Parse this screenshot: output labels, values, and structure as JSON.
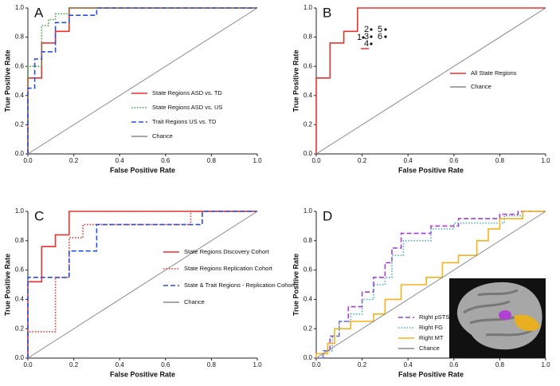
{
  "chart_data": [
    {
      "type": "line",
      "panel": "A",
      "xlabel": "False Positive Rate",
      "ylabel": "True Positive Rate",
      "xlim": [
        0,
        1
      ],
      "ylim": [
        0,
        1
      ],
      "xticks": [
        {
          "value": 0,
          "label": "0.0"
        },
        0.2,
        0.4,
        0.6,
        0.8,
        {
          "value": 1,
          "label": "1.0"
        }
      ],
      "yticks": [
        {
          "value": 0,
          "label": "0.0"
        },
        0.2,
        0.4,
        0.6,
        0.8,
        {
          "value": 1,
          "label": "1.0"
        }
      ],
      "legend": "lower right",
      "series": [
        {
          "name": "State Regions ASD vs. TD",
          "color": "#e8332f",
          "style": "solid",
          "x": [
            0,
            0,
            0.06,
            0.06,
            0.12,
            0.12,
            0.18,
            0.18,
            1
          ],
          "values": [
            0,
            0.52,
            0.52,
            0.76,
            0.76,
            0.84,
            0.84,
            1,
            1
          ]
        },
        {
          "name": "State Regions ASD vs. US",
          "color": "#3aa23a",
          "style": "dotted",
          "x": [
            0,
            0,
            0.06,
            0.06,
            0.09,
            0.09,
            0.12,
            0.12,
            0.18,
            0.18,
            1
          ],
          "values": [
            0,
            0.6,
            0.6,
            0.88,
            0.88,
            0.92,
            0.92,
            0.96,
            0.96,
            1,
            1
          ]
        },
        {
          "name": "Trait Regions US vs. TD",
          "color": "#2b4fd8",
          "style": "dashed",
          "x": [
            0,
            0,
            0.03,
            0.03,
            0.06,
            0.06,
            0.12,
            0.12,
            0.18,
            0.18,
            0.3,
            0.3,
            1
          ],
          "values": [
            0,
            0.45,
            0.45,
            0.65,
            0.65,
            0.7,
            0.7,
            0.9,
            0.9,
            0.95,
            0.95,
            1,
            1
          ]
        },
        {
          "name": "Chance",
          "color": "#888888",
          "style": "solid",
          "x": [
            0,
            1
          ],
          "values": [
            0,
            1
          ]
        }
      ]
    },
    {
      "type": "line",
      "panel": "B",
      "xlabel": "False Positive Rate",
      "ylabel": "True Positive Rate",
      "xlim": [
        0,
        1
      ],
      "ylim": [
        0,
        1
      ],
      "xticks": [
        {
          "value": 0,
          "label": "0.0"
        },
        0.2,
        0.4,
        0.6,
        0.8,
        {
          "value": 1,
          "label": "1.0"
        }
      ],
      "yticks": [
        {
          "value": 0,
          "label": "0.0"
        },
        0.2,
        0.4,
        0.6,
        0.8,
        {
          "value": 1,
          "label": "1.0"
        }
      ],
      "legend": "center right",
      "annotations": [
        "1",
        "2",
        "3",
        "4",
        "5",
        "6"
      ],
      "series": [
        {
          "name": "All State Regions",
          "color": "#e8332f",
          "style": "solid",
          "x": [
            0,
            0,
            0.06,
            0.06,
            0.12,
            0.12,
            0.18,
            0.18,
            1
          ],
          "values": [
            0,
            0.52,
            0.52,
            0.76,
            0.76,
            0.84,
            0.84,
            1,
            1
          ]
        },
        {
          "name": "Chance",
          "color": "#888888",
          "style": "solid",
          "x": [
            0,
            1
          ],
          "values": [
            0,
            1
          ]
        }
      ]
    },
    {
      "type": "line",
      "panel": "C",
      "xlabel": "False Positive Rate",
      "ylabel": "True Positive Rate",
      "xlim": [
        0,
        1
      ],
      "ylim": [
        0,
        1
      ],
      "xticks": [
        {
          "value": 0,
          "label": "0.0"
        },
        0.2,
        0.4,
        0.6,
        0.8,
        {
          "value": 1,
          "label": "1.0"
        }
      ],
      "yticks": [
        {
          "value": 0,
          "label": "0.0"
        },
        0.2,
        0.4,
        0.6,
        0.8,
        {
          "value": 1,
          "label": "1.0"
        }
      ],
      "legend": "lower right",
      "series": [
        {
          "name": "State Regions Discovery Cohort",
          "color": "#e8332f",
          "style": "solid",
          "x": [
            0,
            0,
            0.06,
            0.06,
            0.12,
            0.12,
            0.18,
            0.18,
            1
          ],
          "values": [
            0,
            0.52,
            0.52,
            0.76,
            0.76,
            0.84,
            0.84,
            1,
            1
          ]
        },
        {
          "name": "State Regions Replication Cohort",
          "color": "#e8332f",
          "style": "dotted",
          "x": [
            0,
            0,
            0.12,
            0.12,
            0.18,
            0.18,
            0.24,
            0.24,
            0.71,
            0.71,
            1
          ],
          "values": [
            0,
            0.18,
            0.18,
            0.55,
            0.55,
            0.82,
            0.82,
            0.91,
            0.91,
            1,
            1
          ]
        },
        {
          "name": "State & Trait Regions - Replication Cohort",
          "color": "#2b4fd8",
          "style": "dashed",
          "x": [
            0,
            0,
            0.18,
            0.18,
            0.3,
            0.3,
            0.76,
            0.76,
            1
          ],
          "values": [
            0,
            0.55,
            0.55,
            0.73,
            0.73,
            0.91,
            0.91,
            1,
            1
          ]
        },
        {
          "name": "Chance",
          "color": "#888888",
          "style": "solid",
          "x": [
            0,
            1
          ],
          "values": [
            0,
            1
          ]
        }
      ]
    },
    {
      "type": "line",
      "panel": "D",
      "xlabel": "False Positive Rate",
      "ylabel": "True Positive Rate",
      "xlim": [
        0,
        1
      ],
      "ylim": [
        0,
        1
      ],
      "xticks": [
        {
          "value": 0,
          "label": "0.0"
        },
        0.2,
        0.4,
        0.6,
        0.8,
        {
          "value": 1,
          "label": "1.0"
        }
      ],
      "yticks": [
        {
          "value": 0,
          "label": "0.0"
        },
        0.2,
        0.4,
        0.6,
        0.8,
        {
          "value": 1,
          "label": "1.0"
        }
      ],
      "legend": "lower right",
      "series": [
        {
          "name": "Right pSTS",
          "color": "#a23fd0",
          "style": "dashed",
          "x": [
            0,
            0.03,
            0.03,
            0.06,
            0.06,
            0.1,
            0.1,
            0.14,
            0.14,
            0.2,
            0.2,
            0.25,
            0.25,
            0.3,
            0.3,
            0.33,
            0.33,
            0.37,
            0.37,
            0.5,
            0.5,
            0.62,
            0.62,
            0.8,
            0.8,
            0.88,
            0.88,
            1
          ],
          "values": [
            0,
            0,
            0.05,
            0.05,
            0.15,
            0.15,
            0.25,
            0.25,
            0.35,
            0.35,
            0.45,
            0.45,
            0.55,
            0.55,
            0.65,
            0.65,
            0.75,
            0.75,
            0.85,
            0.85,
            0.9,
            0.9,
            0.95,
            0.95,
            0.98,
            0.98,
            1,
            1
          ]
        },
        {
          "name": "Right FG",
          "color": "#4ab0c8",
          "style": "dotted",
          "x": [
            0,
            0.03,
            0.03,
            0.07,
            0.07,
            0.1,
            0.1,
            0.15,
            0.15,
            0.2,
            0.2,
            0.25,
            0.25,
            0.3,
            0.3,
            0.33,
            0.33,
            0.38,
            0.38,
            0.5,
            0.5,
            0.6,
            0.6,
            0.82,
            0.82,
            0.9,
            0.9,
            1
          ],
          "values": [
            0,
            0,
            0.05,
            0.05,
            0.15,
            0.15,
            0.25,
            0.25,
            0.3,
            0.3,
            0.4,
            0.4,
            0.5,
            0.5,
            0.55,
            0.55,
            0.7,
            0.7,
            0.8,
            0.8,
            0.88,
            0.88,
            0.92,
            0.92,
            0.97,
            0.97,
            1,
            1
          ]
        },
        {
          "name": "Right MT",
          "color": "#f5b21e",
          "style": "solid",
          "x": [
            0,
            0,
            0.05,
            0.05,
            0.08,
            0.08,
            0.15,
            0.15,
            0.25,
            0.25,
            0.3,
            0.3,
            0.37,
            0.37,
            0.48,
            0.48,
            0.55,
            0.55,
            0.62,
            0.62,
            0.7,
            0.7,
            0.75,
            0.75,
            0.8,
            0.8,
            0.9,
            0.9,
            1
          ],
          "values": [
            0,
            0.03,
            0.03,
            0.1,
            0.1,
            0.2,
            0.2,
            0.25,
            0.25,
            0.3,
            0.3,
            0.4,
            0.4,
            0.5,
            0.5,
            0.55,
            0.55,
            0.65,
            0.65,
            0.7,
            0.7,
            0.8,
            0.8,
            0.88,
            0.88,
            0.95,
            0.95,
            1,
            1
          ]
        },
        {
          "name": "Chance",
          "color": "#888888",
          "style": "solid",
          "x": [
            0,
            1
          ],
          "values": [
            0,
            1
          ]
        }
      ]
    }
  ]
}
